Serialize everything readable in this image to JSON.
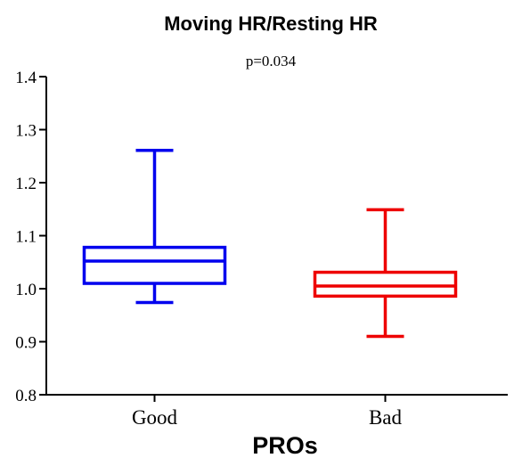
{
  "chart_data": {
    "type": "boxplot",
    "title": "Moving HR/Resting HR",
    "subtitle": "p=0.034",
    "xlabel": "PROs",
    "ylabel": "",
    "ylim": [
      0.8,
      1.4
    ],
    "yticks": [
      0.8,
      0.9,
      1.0,
      1.1,
      1.2,
      1.3,
      1.4
    ],
    "ytick_labels": [
      "0.8",
      "0.9",
      "1.0",
      "1.1",
      "1.2",
      "1.3",
      "1.4"
    ],
    "grid": false,
    "categories": [
      "Good",
      "Bad"
    ],
    "boxes": [
      {
        "min": 0.974,
        "q1": 1.01,
        "median": 1.052,
        "q3": 1.078,
        "max": 1.261,
        "color": "#0000ee"
      },
      {
        "min": 0.91,
        "q1": 0.986,
        "median": 1.005,
        "q3": 1.031,
        "max": 1.149,
        "color": "#ee0000"
      }
    ]
  }
}
